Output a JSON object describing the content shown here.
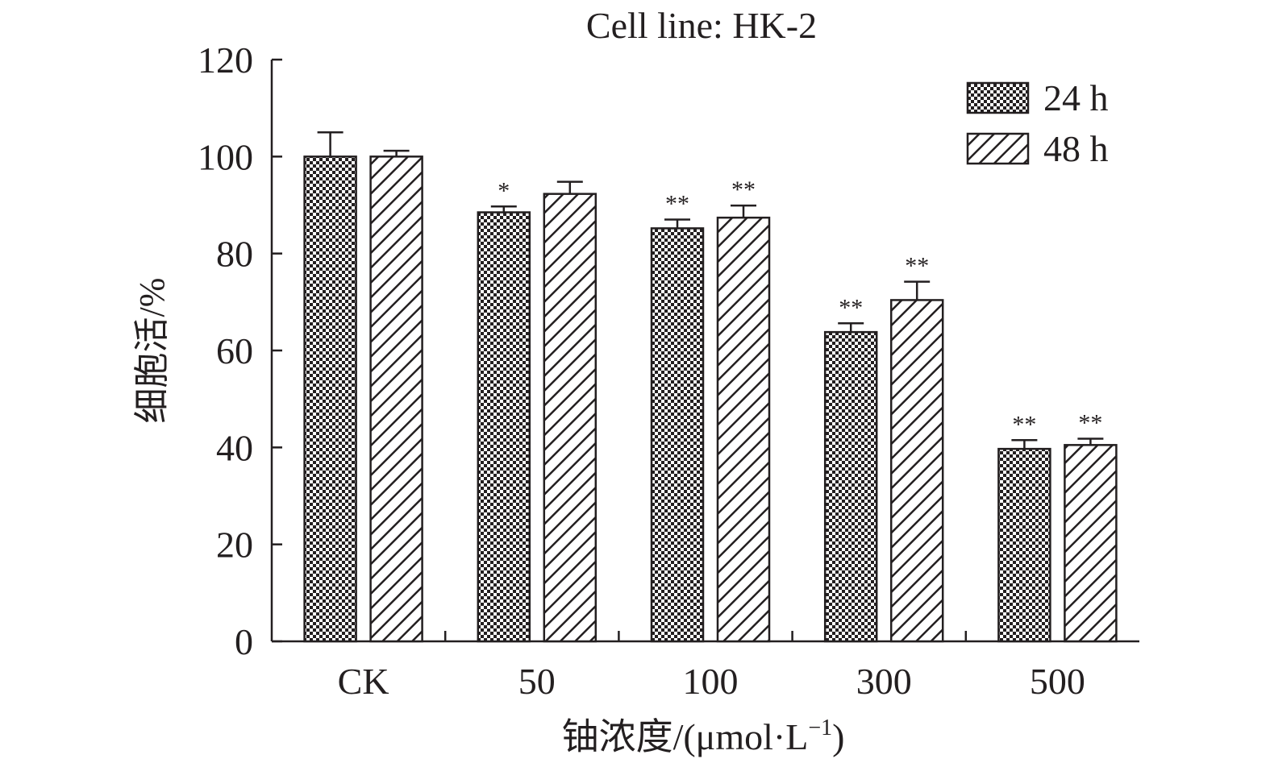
{
  "chart_data": {
    "type": "bar",
    "title": "Cell line: HK-2",
    "xlabel": "铀浓度/(μmol·L",
    "xlabel_sup": "−1",
    "xlabel_close": ")",
    "ylabel": "细胞活/%",
    "categories": [
      "CK",
      "50",
      "100",
      "300",
      "500"
    ],
    "ylim": [
      0,
      120
    ],
    "yticks": [
      0,
      20,
      40,
      60,
      80,
      100,
      120
    ],
    "legend_position": "top-right",
    "series": [
      {
        "name": "24 h",
        "pattern": "checker",
        "values": [
          100,
          88.5,
          85.2,
          63.8,
          39.7
        ],
        "errors": [
          5.0,
          1.2,
          1.8,
          1.8,
          1.8
        ],
        "significance": [
          "",
          "*",
          "**",
          "**",
          "**"
        ]
      },
      {
        "name": "48 h",
        "pattern": "hatch",
        "values": [
          100,
          92.3,
          87.4,
          70.4,
          40.5
        ],
        "errors": [
          1.2,
          2.5,
          2.5,
          3.8,
          1.3
        ],
        "significance": [
          "",
          "",
          "**",
          "**",
          "**"
        ]
      }
    ],
    "colors": {
      "ink": "#231f20",
      "background": "#ffffff"
    }
  }
}
